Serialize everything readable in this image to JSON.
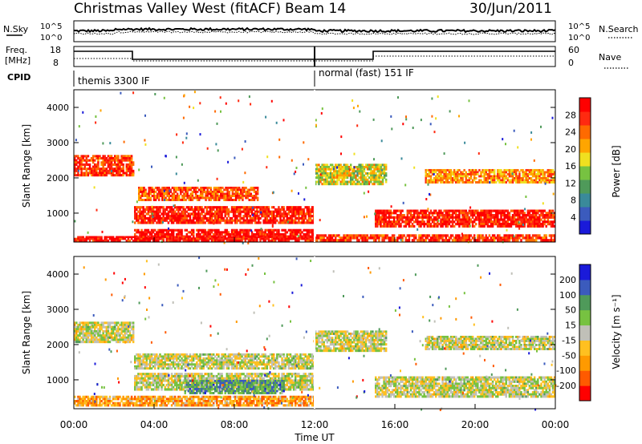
{
  "header": {
    "title": "Christmas Valley West (fitACF)",
    "beam": "Beam 14",
    "date": "30/Jun/2011"
  },
  "summary": {
    "nsky_label": "N.Sky",
    "nsky_ticks": [
      "10^5",
      "10^0"
    ],
    "nsearch_label": "N.Search",
    "nsearch_ticks": [
      "10^5",
      "10^0"
    ],
    "freq_label_1": "Freq.",
    "freq_label_2": "[MHz]",
    "freq_ticks": [
      "18",
      "8"
    ],
    "nave_label": "Nave",
    "nave_ticks": [
      "60",
      "0"
    ],
    "cpid_label": "CPID",
    "cpid_segments": [
      "themis 3300 IF",
      "normal (fast) 151 IF"
    ]
  },
  "chart_data": [
    {
      "type": "heatmap",
      "title": "",
      "ylabel": "Slant Range [km]",
      "ylim": [
        180,
        4500
      ],
      "yticks": [
        "4000",
        "3000",
        "2000",
        "1000"
      ],
      "colorbar_label": "Power [dB]",
      "colorbar_ticks": [
        "28",
        "24",
        "20",
        "16",
        "12",
        "8",
        "4"
      ],
      "colorscale": [
        "#1a1ad9",
        "#3b5bbd",
        "#3a8a9a",
        "#4f9a5a",
        "#77c241",
        "#f0e020",
        "#ffa500",
        "#ff6a00",
        "#ff2a10",
        "#ff0000"
      ],
      "bands": [
        {
          "t": [
            0.0,
            3.0
          ],
          "r": [
            2050,
            2650
          ],
          "level": 0.85
        },
        {
          "t": [
            3.0,
            12.0
          ],
          "r": [
            250,
            550
          ],
          "level": 0.95
        },
        {
          "t": [
            3.0,
            12.0
          ],
          "r": [
            700,
            1200
          ],
          "level": 0.9
        },
        {
          "t": [
            3.2,
            9.2
          ],
          "r": [
            1350,
            1750
          ],
          "level": 0.8
        },
        {
          "t": [
            0.0,
            12.0
          ],
          "r": [
            200,
            350
          ],
          "level": 0.95
        },
        {
          "t": [
            12.0,
            15.6
          ],
          "r": [
            1800,
            2400
          ],
          "level": 0.55
        },
        {
          "t": [
            15.0,
            24.0
          ],
          "r": [
            600,
            1100
          ],
          "level": 0.9
        },
        {
          "t": [
            17.5,
            24.0
          ],
          "r": [
            1850,
            2250
          ],
          "level": 0.7
        },
        {
          "t": [
            12.0,
            24.0
          ],
          "r": [
            200,
            400
          ],
          "level": 0.85
        }
      ]
    },
    {
      "type": "heatmap",
      "title": "",
      "xlabel": "Time UT",
      "xticks": [
        "00:00",
        "04:00",
        "08:00",
        "12:00",
        "16:00",
        "20:00",
        "00:00"
      ],
      "ylabel": "Slant Range [km]",
      "ylim": [
        180,
        4500
      ],
      "yticks": [
        "4000",
        "3000",
        "2000",
        "1000"
      ],
      "colorbar_label": "Velocity [m s⁻¹]",
      "colorbar_ticks": [
        "200",
        "100",
        "50",
        "15",
        "-15",
        "-50",
        "-100",
        "-200"
      ],
      "colorscale": [
        "#ff0000",
        "#ff5a00",
        "#ff9a00",
        "#ffc020",
        "#c0c0b8",
        "#77c241",
        "#4f9a5a",
        "#3b5bbd",
        "#1a1ad9"
      ],
      "bands": [
        {
          "t": [
            0.0,
            3.0
          ],
          "r": [
            2050,
            2650
          ],
          "level": 0.5
        },
        {
          "t": [
            3.0,
            12.0
          ],
          "r": [
            1300,
            1750
          ],
          "level": 0.5
        },
        {
          "t": [
            3.0,
            12.0
          ],
          "r": [
            700,
            1200
          ],
          "level": 0.5
        },
        {
          "t": [
            5.5,
            10.5
          ],
          "r": [
            600,
            1000
          ],
          "level": 0.72
        },
        {
          "t": [
            0.0,
            12.0
          ],
          "r": [
            250,
            550
          ],
          "level": 0.3
        },
        {
          "t": [
            12.0,
            15.6
          ],
          "r": [
            1800,
            2400
          ],
          "level": 0.5
        },
        {
          "t": [
            15.0,
            24.0
          ],
          "r": [
            500,
            1100
          ],
          "level": 0.5
        },
        {
          "t": [
            17.5,
            24.0
          ],
          "r": [
            1850,
            2250
          ],
          "level": 0.5
        }
      ]
    }
  ]
}
